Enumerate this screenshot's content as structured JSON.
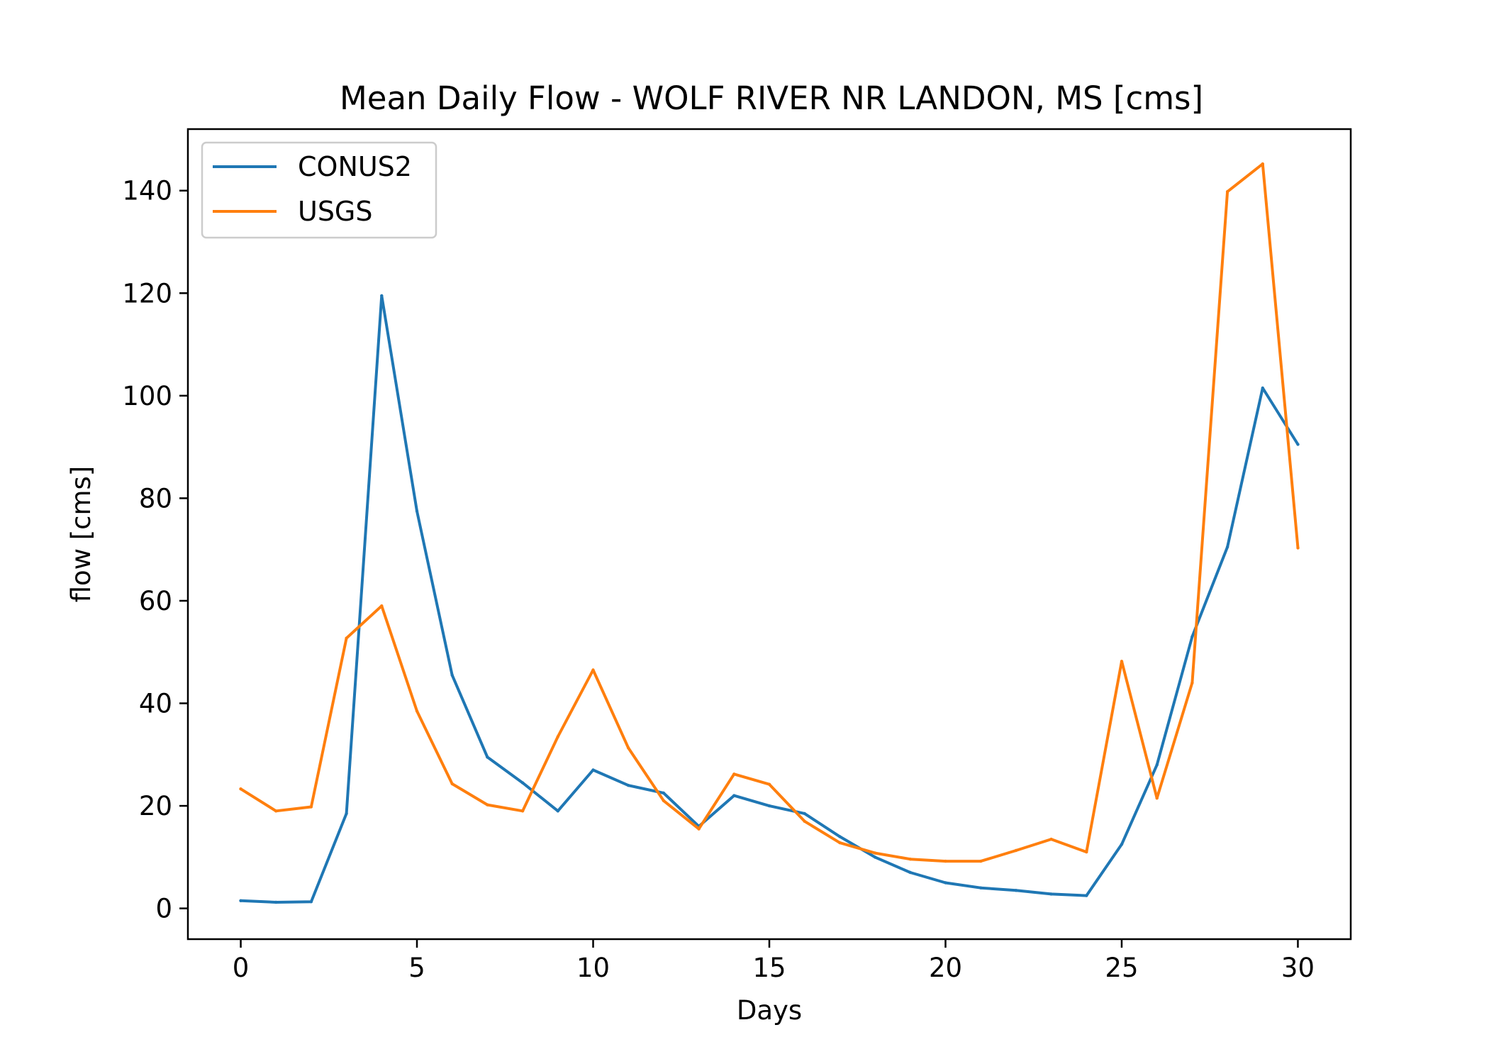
{
  "chart_data": {
    "type": "line",
    "title": "Mean Daily Flow - WOLF RIVER NR LANDON, MS [cms]",
    "xlabel": "Days",
    "ylabel": "flow [cms]",
    "xlim": [
      -1.5,
      31.5
    ],
    "ylim": [
      -6,
      152
    ],
    "xticks": [
      0,
      5,
      10,
      15,
      20,
      25,
      30
    ],
    "yticks": [
      0,
      20,
      40,
      60,
      80,
      100,
      120,
      140
    ],
    "grid": false,
    "legend_position": "upper-left",
    "x": [
      0,
      1,
      2,
      3,
      4,
      5,
      6,
      7,
      8,
      9,
      10,
      11,
      12,
      13,
      14,
      15,
      16,
      17,
      18,
      19,
      20,
      21,
      22,
      23,
      24,
      25,
      26,
      27,
      28,
      29,
      30
    ],
    "series": [
      {
        "name": "CONUS2",
        "color": "#1f77b4",
        "values": [
          1.5,
          1.2,
          1.3,
          18.5,
          119.5,
          77.5,
          45.5,
          29.5,
          24.5,
          19,
          27,
          24,
          22.5,
          16,
          22,
          20,
          18.5,
          14,
          10,
          7,
          5,
          4,
          3.5,
          2.8,
          2.5,
          12.5,
          28,
          53,
          70.5,
          101.5,
          90.5
        ]
      },
      {
        "name": "USGS",
        "color": "#ff7f0e",
        "values": [
          23.3,
          19,
          19.8,
          52.7,
          59,
          38.5,
          24.3,
          20.2,
          19,
          33.5,
          46.5,
          31.3,
          21,
          15.5,
          26.2,
          24.2,
          17,
          12.8,
          10.8,
          9.6,
          9.2,
          9.2,
          11.3,
          13.5,
          11,
          48.2,
          21.5,
          44,
          139.8,
          145.2,
          70.3
        ]
      }
    ]
  }
}
